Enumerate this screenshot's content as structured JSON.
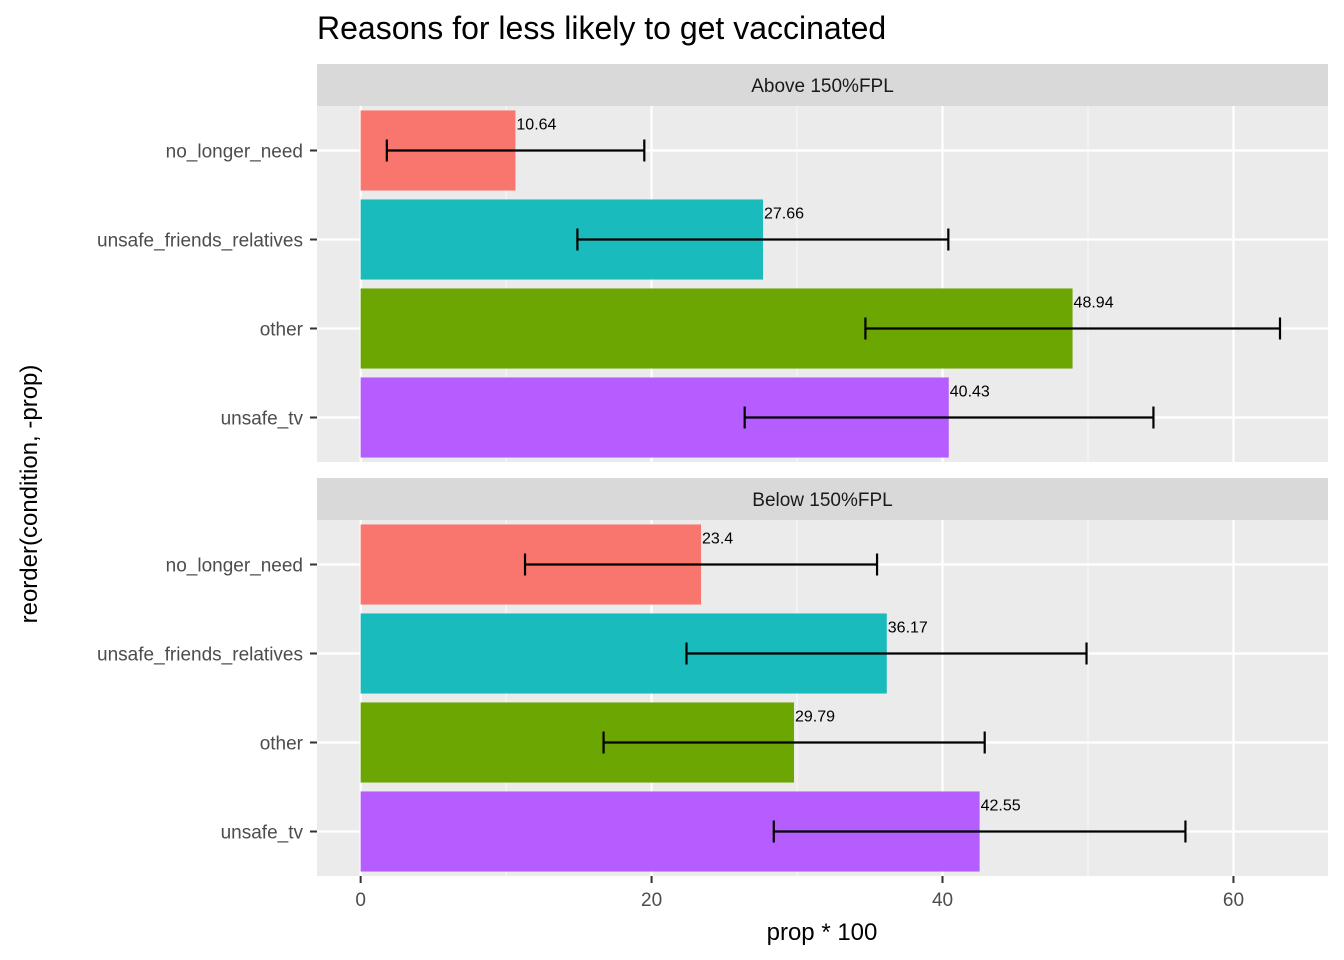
{
  "chart_data": {
    "type": "bar",
    "orientation": "horizontal",
    "title": "Reasons for less likely to get vaccinated",
    "xlabel": "prop * 100",
    "ylabel": "reorder(condition, -prop)",
    "xlim": [
      -3,
      66.5
    ],
    "xticks": [
      0,
      20,
      40,
      60
    ],
    "grid": true,
    "legend": "none",
    "categories": [
      "no_longer_need",
      "unsafe_friends_relatives",
      "other",
      "unsafe_tv"
    ],
    "colors": [
      "#F8766D",
      "#1ABBBC",
      "#6BA602",
      "#B65DFF"
    ],
    "facets": [
      {
        "name": "Above 150%FPL",
        "values": [
          10.64,
          27.66,
          48.94,
          40.43
        ],
        "labels": [
          "10.64",
          "27.66",
          "48.94",
          "40.43"
        ],
        "err_low": [
          1.8,
          14.9,
          34.7,
          26.4
        ],
        "err_high": [
          19.5,
          40.4,
          63.2,
          54.5
        ]
      },
      {
        "name": "Below 150%FPL",
        "values": [
          23.4,
          36.17,
          29.79,
          42.55
        ],
        "labels": [
          "23.4",
          "36.17",
          "29.79",
          "42.55"
        ],
        "err_low": [
          11.3,
          22.4,
          16.7,
          28.4
        ],
        "err_high": [
          35.5,
          49.9,
          42.9,
          56.7
        ]
      }
    ]
  }
}
